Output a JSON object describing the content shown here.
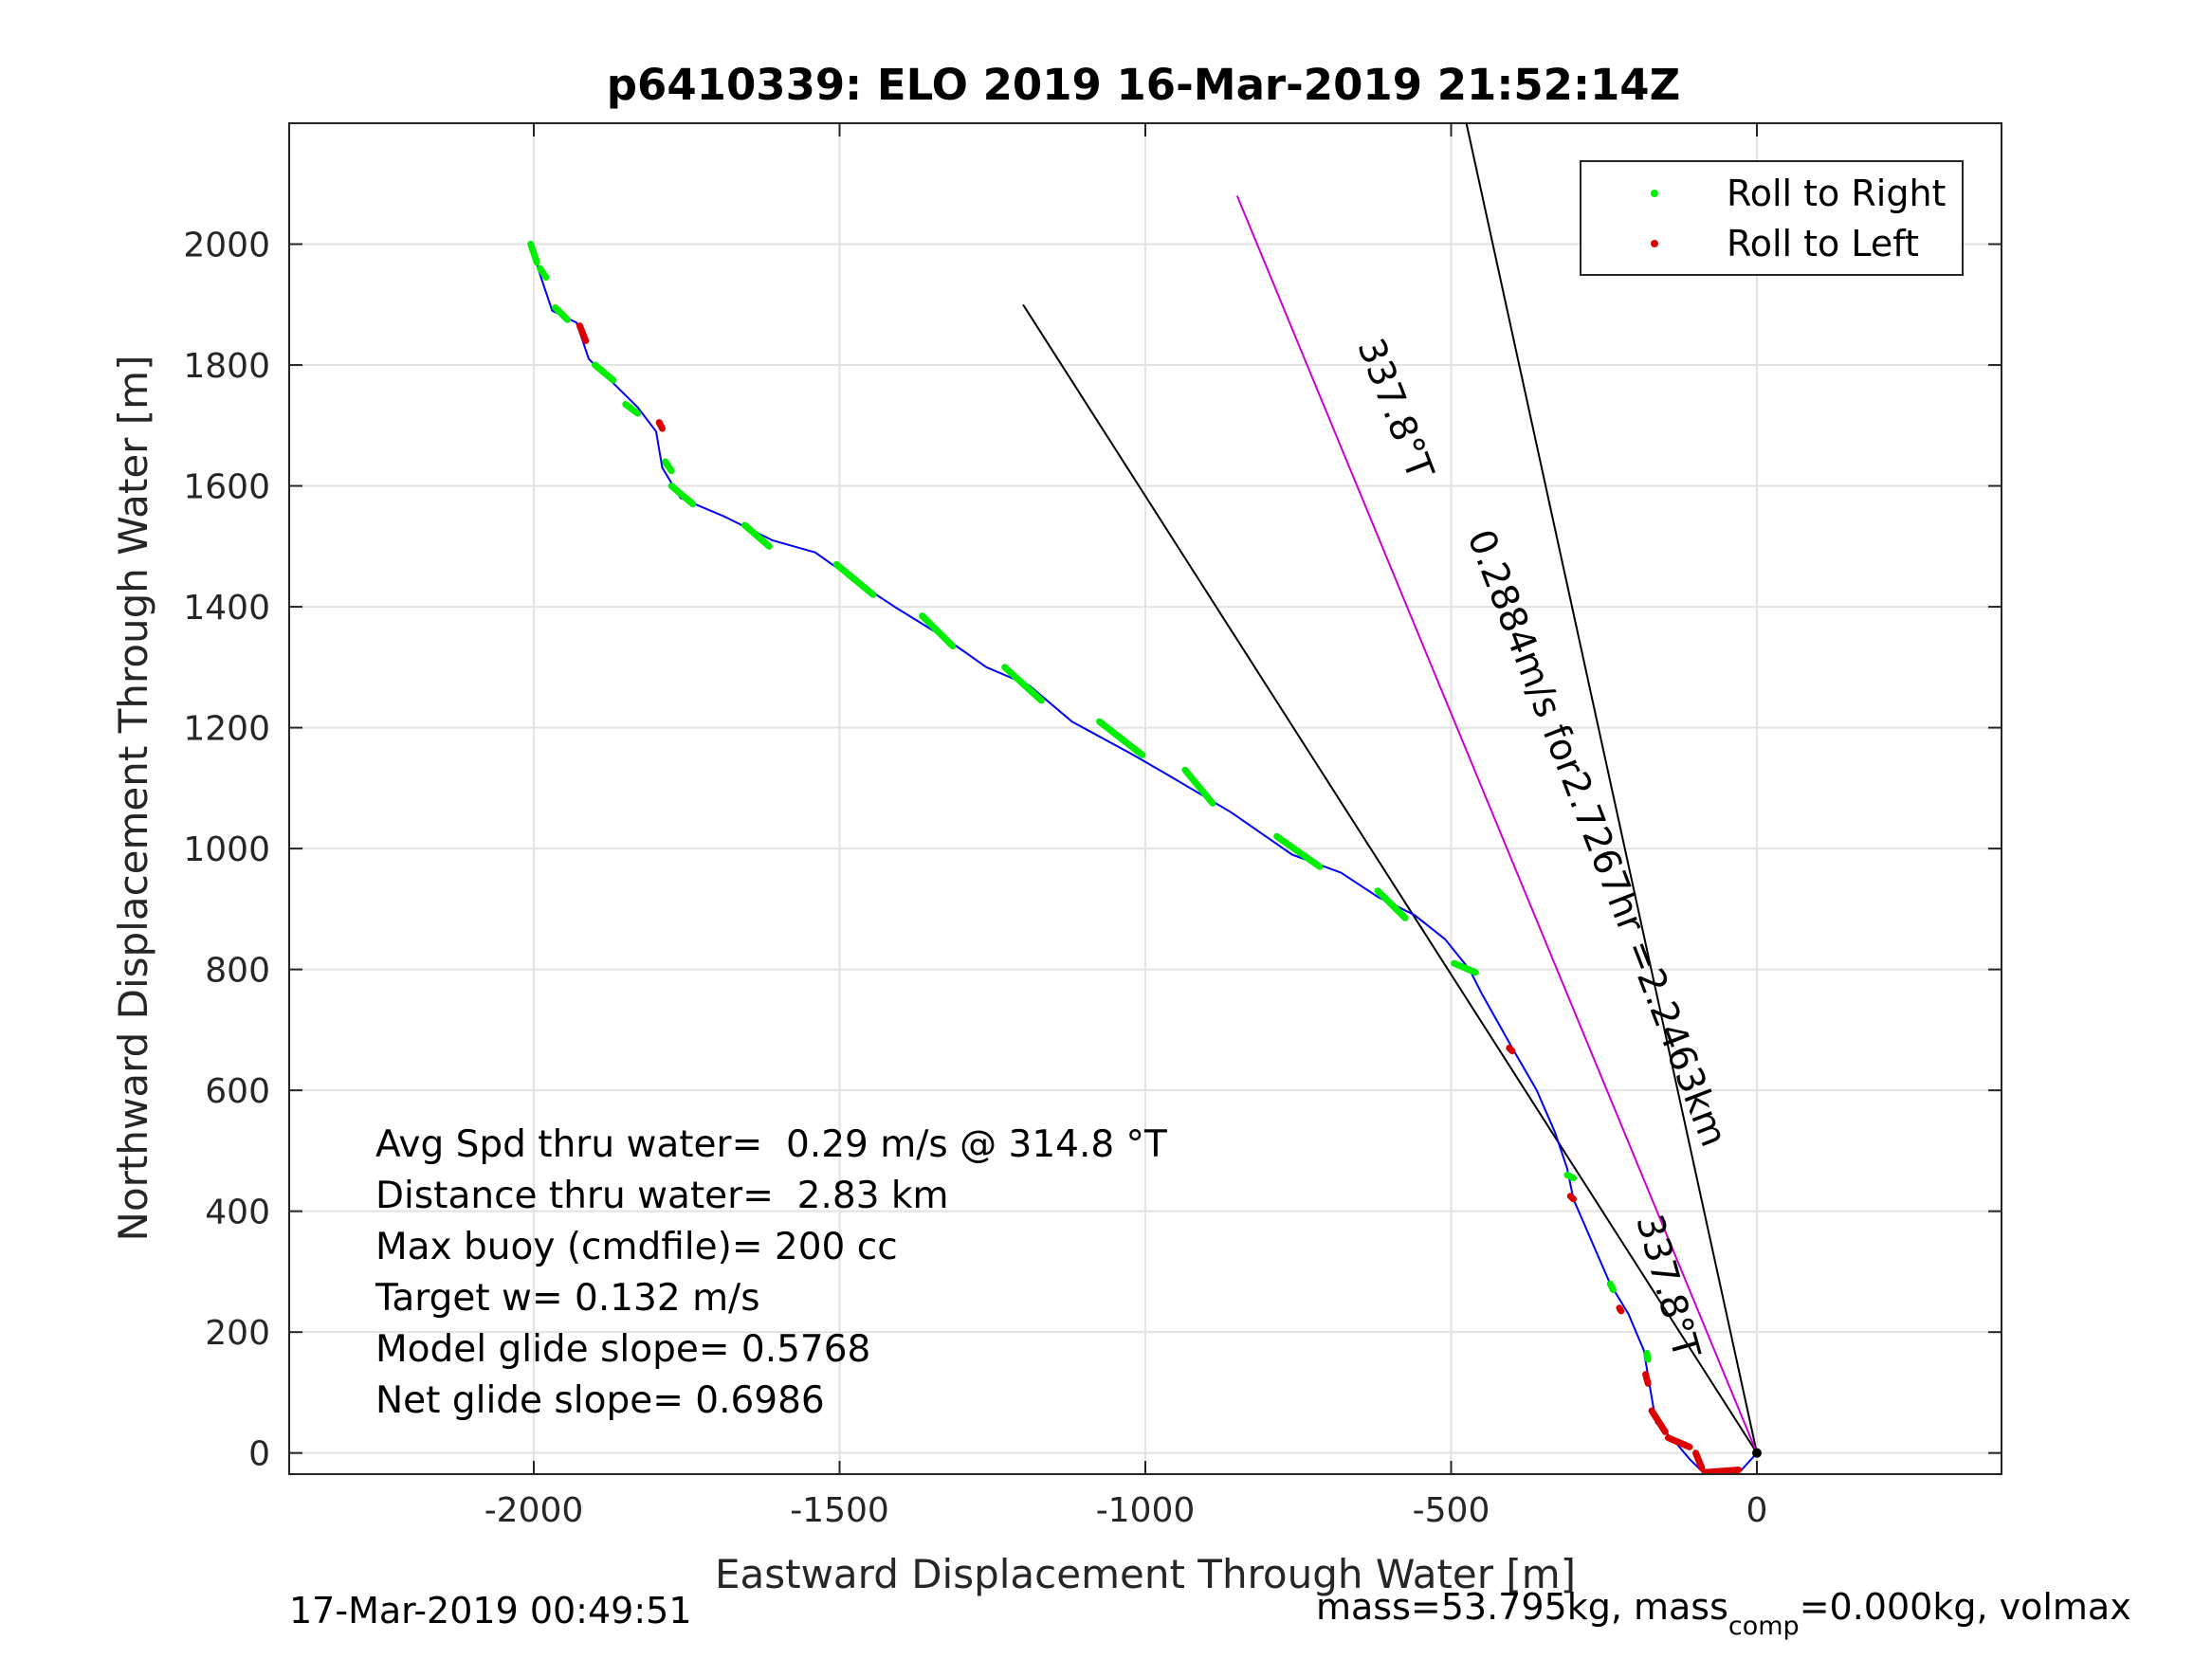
{
  "chart_data": {
    "type": "line",
    "title": "p6410339: ELO 2019 16-Mar-2019 21:52:14Z",
    "xlabel": "Eastward Displacement Through Water [m]",
    "ylabel": "Northward Displacement Through Water [m]",
    "xlim": [
      -2400,
      400
    ],
    "ylim": [
      -35,
      2200
    ],
    "xticks": [
      -2000,
      -1500,
      -1000,
      -500,
      0
    ],
    "xtick_labels": [
      "-2000",
      "-1500",
      "-1000",
      "-500",
      "0"
    ],
    "yticks": [
      0,
      200,
      400,
      600,
      800,
      1000,
      1200,
      1400,
      1600,
      1800,
      2000
    ],
    "ytick_labels": [
      "0",
      "200",
      "400",
      "600",
      "800",
      "1000",
      "1200",
      "1400",
      "1600",
      "1800",
      "2000"
    ],
    "grid": true,
    "legend_position": "top-right",
    "legend": [
      {
        "label": "Roll to Right",
        "color": "#00ee00"
      },
      {
        "label": "Roll to Left",
        "color": "#dd0000"
      }
    ],
    "colors": {
      "track": "#0000ff",
      "roll_right": "#00ee00",
      "roll_left": "#dd0000",
      "heading_line": "#cc00cc",
      "reference_lines": "#000000"
    },
    "track_waypoints": [
      [
        0,
        0
      ],
      [
        -25,
        -28
      ],
      [
        -55,
        -35
      ],
      [
        -90,
        -30
      ],
      [
        -110,
        -10
      ],
      [
        -135,
        20
      ],
      [
        -165,
        50
      ],
      [
        -175,
        110
      ],
      [
        -185,
        170
      ],
      [
        -210,
        230
      ],
      [
        -240,
        280
      ],
      [
        -270,
        350
      ],
      [
        -300,
        420
      ],
      [
        -310,
        470
      ],
      [
        -330,
        530
      ],
      [
        -360,
        600
      ],
      [
        -400,
        670
      ],
      [
        -450,
        760
      ],
      [
        -470,
        800
      ],
      [
        -510,
        850
      ],
      [
        -560,
        890
      ],
      [
        -620,
        920
      ],
      [
        -680,
        960
      ],
      [
        -760,
        990
      ],
      [
        -860,
        1060
      ],
      [
        -960,
        1120
      ],
      [
        -1020,
        1155
      ],
      [
        -1120,
        1210
      ],
      [
        -1190,
        1270
      ],
      [
        -1260,
        1300
      ],
      [
        -1330,
        1350
      ],
      [
        -1410,
        1400
      ],
      [
        -1470,
        1440
      ],
      [
        -1540,
        1490
      ],
      [
        -1610,
        1510
      ],
      [
        -1690,
        1550
      ],
      [
        -1760,
        1580
      ],
      [
        -1790,
        1630
      ],
      [
        -1800,
        1690
      ],
      [
        -1830,
        1730
      ],
      [
        -1870,
        1770
      ],
      [
        -1910,
        1810
      ],
      [
        -1930,
        1870
      ],
      [
        -1970,
        1890
      ],
      [
        -1990,
        1950
      ],
      [
        -2005,
        2000
      ]
    ],
    "roll_to_right_segments": [
      [
        [
          -2005,
          2000
        ],
        [
          -1995,
          1970
        ]
      ],
      [
        [
          -1990,
          1960
        ],
        [
          -1980,
          1945
        ]
      ],
      [
        [
          -1965,
          1895
        ],
        [
          -1945,
          1875
        ]
      ],
      [
        [
          -1900,
          1800
        ],
        [
          -1870,
          1775
        ]
      ],
      [
        [
          -1850,
          1735
        ],
        [
          -1830,
          1720
        ]
      ],
      [
        [
          -1785,
          1640
        ],
        [
          -1775,
          1625
        ]
      ],
      [
        [
          -1775,
          1600
        ],
        [
          -1740,
          1570
        ]
      ],
      [
        [
          -1655,
          1535
        ],
        [
          -1615,
          1500
        ]
      ],
      [
        [
          -1505,
          1470
        ],
        [
          -1445,
          1420
        ]
      ],
      [
        [
          -1365,
          1385
        ],
        [
          -1315,
          1335
        ]
      ],
      [
        [
          -1230,
          1300
        ],
        [
          -1170,
          1245
        ]
      ],
      [
        [
          -1075,
          1210
        ],
        [
          -1005,
          1155
        ]
      ],
      [
        [
          -935,
          1130
        ],
        [
          -890,
          1075
        ]
      ],
      [
        [
          -785,
          1020
        ],
        [
          -715,
          970
        ]
      ],
      [
        [
          -620,
          930
        ],
        [
          -575,
          885
        ]
      ],
      [
        [
          -495,
          810
        ],
        [
          -460,
          795
        ]
      ],
      [
        [
          -310,
          460
        ],
        [
          -300,
          455
        ]
      ],
      [
        [
          -240,
          280
        ],
        [
          -235,
          270
        ]
      ],
      [
        [
          -180,
          165
        ],
        [
          -178,
          155
        ]
      ]
    ],
    "roll_to_left_segments": [
      [
        [
          -1925,
          1865
        ],
        [
          -1915,
          1840
        ]
      ],
      [
        [
          -1795,
          1705
        ],
        [
          -1790,
          1695
        ]
      ],
      [
        [
          -405,
          670
        ],
        [
          -400,
          665
        ]
      ],
      [
        [
          -305,
          425
        ],
        [
          -300,
          420
        ]
      ],
      [
        [
          -225,
          240
        ],
        [
          -222,
          235
        ]
      ],
      [
        [
          -182,
          130
        ],
        [
          -178,
          115
        ]
      ],
      [
        [
          -172,
          70
        ],
        [
          -150,
          35
        ]
      ],
      [
        [
          -145,
          25
        ],
        [
          -110,
          10
        ]
      ],
      [
        [
          -100,
          0
        ],
        [
          -90,
          -25
        ]
      ],
      [
        [
          -85,
          -32
        ],
        [
          -30,
          -28
        ]
      ]
    ],
    "heading_line": {
      "label": "337.8°T",
      "points": [
        [
          0,
          0
        ],
        [
          -850,
          2080
        ]
      ]
    },
    "reference_lines": [
      {
        "points": [
          [
            0,
            0
          ],
          [
            -1200,
            1900
          ]
        ]
      },
      {
        "points": [
          [
            0,
            0
          ],
          [
            -475,
            2200
          ]
        ]
      }
    ],
    "line_annotations": [
      {
        "text": "337.8°T",
        "at": [
          -610,
          1720
        ],
        "angle_deg": 68.9
      },
      {
        "text": "0.2884m/s for2.7267hr =2.2463km",
        "at": [
          -280,
          1010
        ],
        "angle_deg": 68.9
      },
      {
        "text": "337.8°T",
        "at": [
          -165,
          270
        ],
        "angle_deg": 74.5
      }
    ],
    "stats": [
      "Avg Spd thru water=  0.29 m/s @ 314.8 °T",
      "Distance thru water=  2.83 km",
      "Max buoy (cmdfile)= 200 cc",
      "Target w= 0.132 m/s",
      "Model glide slope= 0.5768",
      "Net glide slope= 0.6986"
    ]
  },
  "footer": {
    "timestamp": "17-Mar-2019 00:49:51",
    "mass_prefix": "mass=53.795kg, mass",
    "mass_sub": "comp",
    "mass_suffix": "=0.000kg, volmax"
  }
}
